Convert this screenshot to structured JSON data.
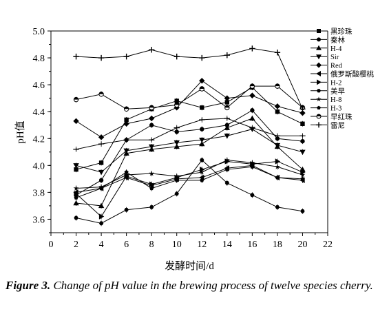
{
  "caption": {
    "label": "Figure 3.",
    "text": " Change of pH value in the brewing process of twelve species cherry."
  },
  "chart_data": {
    "type": "line",
    "title": "",
    "xlabel": "发酵时间/d",
    "ylabel": "pH值",
    "xlim": [
      0,
      22
    ],
    "ylim": [
      3.5,
      5.0
    ],
    "xticks": [
      0,
      2,
      4,
      6,
      8,
      10,
      12,
      14,
      16,
      18,
      20,
      22
    ],
    "yticks": [
      3.6,
      3.8,
      4.0,
      4.2,
      4.4,
      4.6,
      4.8,
      5.0
    ],
    "ytick_labels": [
      "3.6",
      "3.8",
      "4.0",
      "4.2",
      "4.4",
      "4.6",
      "4.8",
      "5.0"
    ],
    "grid": false,
    "legend_position": "right",
    "x": [
      2,
      4,
      6,
      8,
      10,
      12,
      14,
      16,
      18,
      20
    ],
    "series": [
      {
        "name": "黑珍珠",
        "marker": "square",
        "values": [
          3.97,
          4.02,
          4.34,
          4.42,
          4.48,
          4.43,
          4.47,
          4.58,
          4.4,
          4.31
        ]
      },
      {
        "name": "秦林",
        "marker": "circle",
        "values": [
          3.78,
          3.89,
          4.19,
          4.3,
          4.25,
          4.27,
          4.3,
          4.41,
          4.2,
          4.18
        ]
      },
      {
        "name": "H-4",
        "marker": "triangle-up",
        "values": [
          3.72,
          3.7,
          4.09,
          4.12,
          4.14,
          4.16,
          4.28,
          4.35,
          4.14,
          3.97
        ]
      },
      {
        "name": "Sir",
        "marker": "triangle-down",
        "values": [
          4.0,
          3.95,
          4.11,
          4.14,
          4.17,
          4.19,
          4.22,
          4.27,
          4.15,
          4.1
        ]
      },
      {
        "name": "Red",
        "marker": "diamond",
        "values": [
          4.33,
          4.21,
          4.31,
          4.35,
          4.43,
          4.63,
          4.5,
          4.52,
          4.44,
          4.39
        ]
      },
      {
        "name": "俄罗斯酸樱桃",
        "marker": "triangle-left",
        "values": [
          3.8,
          3.83,
          3.91,
          3.85,
          3.9,
          3.91,
          3.98,
          4.0,
          3.91,
          3.89
        ]
      },
      {
        "name": "H-2",
        "marker": "triangle-right",
        "values": [
          3.79,
          3.62,
          3.92,
          3.86,
          3.91,
          3.97,
          4.03,
          4.01,
          4.03,
          3.95
        ]
      },
      {
        "name": "美早",
        "marker": "hexagon",
        "values": [
          3.61,
          3.57,
          3.67,
          3.69,
          3.79,
          4.04,
          3.87,
          3.78,
          3.69,
          3.66
        ]
      },
      {
        "name": "H-8",
        "marker": "star",
        "values": [
          3.83,
          3.84,
          3.93,
          3.94,
          3.92,
          3.95,
          4.04,
          4.02,
          3.99,
          3.93
        ]
      },
      {
        "name": "H-3",
        "marker": "pentagon",
        "values": [
          3.76,
          3.83,
          3.95,
          3.83,
          3.89,
          3.89,
          3.97,
          3.99,
          3.91,
          3.9
        ]
      },
      {
        "name": "早红珠",
        "marker": "half-circle",
        "values": [
          4.49,
          4.53,
          4.42,
          4.43,
          4.45,
          4.57,
          4.43,
          4.59,
          4.59,
          4.43
        ]
      },
      {
        "name": "雷尼",
        "marker": "plus",
        "values": [
          4.81,
          4.8,
          4.81,
          4.86,
          4.81,
          4.8,
          4.82,
          4.87,
          4.84,
          4.42
        ]
      },
      {
        "name": "",
        "marker": "bar",
        "values": [
          4.12,
          4.16,
          4.19,
          4.19,
          4.28,
          4.34,
          4.35,
          4.28,
          4.22,
          4.22
        ]
      }
    ]
  }
}
